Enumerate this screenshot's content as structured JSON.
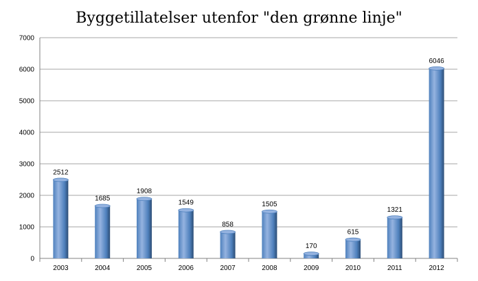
{
  "chart_data": {
    "type": "bar",
    "title": "Byggetillatelser utenfor \"den grønne linje\"",
    "xlabel": "",
    "ylabel": "",
    "categories": [
      "2003",
      "2004",
      "2005",
      "2006",
      "2007",
      "2008",
      "2009",
      "2010",
      "2011",
      "2012"
    ],
    "values": [
      2512,
      1685,
      1908,
      1549,
      858,
      1505,
      170,
      615,
      1321,
      6046
    ],
    "ylim": [
      0,
      7000
    ],
    "yticks": [
      0,
      1000,
      2000,
      3000,
      4000,
      5000,
      6000,
      7000
    ],
    "grid": true,
    "data_labels": true,
    "legend": "none",
    "colors": {
      "bar": "#4f81bd",
      "bar_light": "#95b3e0",
      "bar_dark": "#2c4d75",
      "grid": "#a6a6a6"
    }
  }
}
